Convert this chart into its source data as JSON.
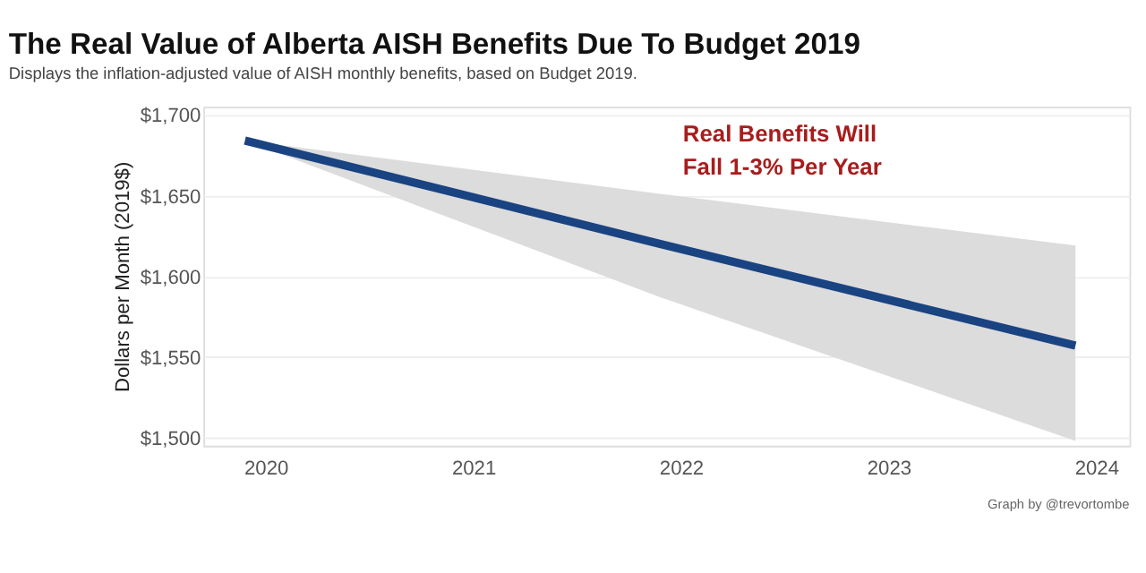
{
  "chart_data": {
    "type": "line",
    "title": "The Real Value of Alberta AISH Benefits Due To Budget 2019",
    "subtitle": "Displays the inflation-adjusted value of AISH monthly benefits, based on Budget 2019.",
    "ylabel": "Dollars per Month (2019$)",
    "x": [
      2019.9,
      2021.9,
      2023.9
    ],
    "series": [
      {
        "color": "#1a4381",
        "values": [
          1684,
          1620,
          1557
        ],
        "lower": [
          1684,
          1587,
          1498
        ],
        "upper": [
          1684,
          1651,
          1619
        ]
      }
    ],
    "xlim": [
      2019.7,
      2024.16
    ],
    "xticks": [
      2020,
      2021,
      2022,
      2023,
      2024
    ],
    "ylim": [
      1495,
      1705
    ],
    "yticks": [
      {
        "value": 1500,
        "label": "$1,500"
      },
      {
        "value": 1550,
        "label": "$1,550"
      },
      {
        "value": 1600,
        "label": "$1,600"
      },
      {
        "value": 1650,
        "label": "$1,650"
      },
      {
        "value": 1700,
        "label": "$1,700"
      }
    ],
    "grid": "y",
    "annotations": [
      "Real Benefits Will\nFall 1-3% Per Year",
      "Graph by @trevortombe"
    ]
  }
}
